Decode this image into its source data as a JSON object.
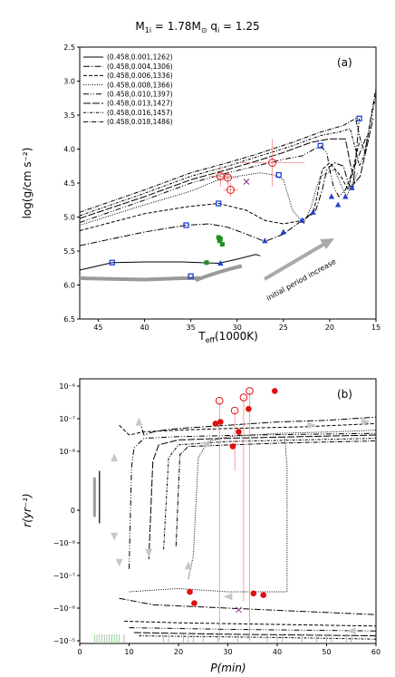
{
  "figure": {
    "title": "M_1i = 1.78M_⊙ q_i = 1.25",
    "title_main": "M",
    "title_sub": "1i",
    "title_rest": " = 1.78M",
    "title_sun": "⊙",
    "title_q": " q",
    "title_qsub": "i",
    "title_qval": " = 1.25"
  },
  "chart_data": [
    {
      "type": "line",
      "panel_label": "(a)",
      "xlabel": "T_eff(1000K)",
      "xlabel_main": "T",
      "xlabel_sub": "eff",
      "xlabel_rest": "(1000K)",
      "ylabel": "log(g/cm s⁻²)",
      "xlim": [
        47,
        15
      ],
      "ylim": [
        6.5,
        2.5
      ],
      "x_ticks": [
        "45",
        "40",
        "35",
        "30",
        "25",
        "20",
        "15"
      ],
      "x_tick_values": [
        45,
        40,
        35,
        30,
        25,
        20,
        15
      ],
      "y_ticks": [
        "2.5",
        "3.0",
        "3.5",
        "4.0",
        "4.5",
        "5.0",
        "5.5",
        "6.0",
        "6.5"
      ],
      "y_tick_values": [
        2.5,
        3.0,
        3.5,
        4.0,
        4.5,
        5.0,
        5.5,
        6.0,
        6.5
      ],
      "annotation": "initial period increase",
      "annotation_color": "#9a1d9a",
      "legend_position": "upper-left",
      "series": [
        {
          "name": "(0.458,0.001,1262)",
          "dash": "",
          "points": [
            [
              47,
              5.78
            ],
            [
              43.5,
              5.67
            ],
            [
              40,
              5.66
            ],
            [
              36,
              5.66
            ],
            [
              34,
              5.67
            ],
            [
              32,
              5.68
            ],
            [
              30,
              5.62
            ],
            [
              28,
              5.55
            ],
            [
              27.5,
              5.57
            ]
          ]
        },
        {
          "name": "(0.458,0.004,1306)",
          "dash": "7,2,1.5,2",
          "points": [
            [
              47,
              5.42
            ],
            [
              40,
              5.22
            ],
            [
              35.5,
              5.12
            ],
            [
              33,
              5.1
            ],
            [
              31,
              5.15
            ],
            [
              29,
              5.25
            ],
            [
              27,
              5.36
            ],
            [
              25,
              5.25
            ],
            [
              23,
              5.05
            ],
            [
              21.5,
              4.9
            ],
            [
              20.8,
              4.6
            ],
            [
              20.3,
              4.3
            ],
            [
              19.5,
              4.2
            ],
            [
              18.5,
              4.25
            ],
            [
              18,
              4.5
            ],
            [
              17.5,
              4.6
            ],
            [
              16.8,
              3.55
            ]
          ]
        },
        {
          "name": "(0.458,0.006,1336)",
          "dash": "4,2",
          "points": [
            [
              47,
              5.2
            ],
            [
              40,
              4.95
            ],
            [
              35.5,
              4.85
            ],
            [
              32,
              4.8
            ],
            [
              29,
              4.9
            ],
            [
              27,
              5.05
            ],
            [
              25,
              5.1
            ],
            [
              23,
              5.05
            ],
            [
              21.8,
              4.95
            ],
            [
              21.3,
              4.65
            ],
            [
              20.8,
              4.3
            ],
            [
              20,
              4.2
            ],
            [
              18.8,
              4.4
            ],
            [
              18,
              4.6
            ],
            [
              16.8,
              3.9
            ]
          ]
        },
        {
          "name": "(0.458,0.008,1366)",
          "dash": "1,1.5",
          "points": [
            [
              47,
              5.12
            ],
            [
              40,
              4.82
            ],
            [
              35,
              4.62
            ],
            [
              32,
              4.45
            ],
            [
              30,
              4.4
            ],
            [
              27.5,
              4.35
            ],
            [
              26,
              4.38
            ],
            [
              25,
              4.45
            ],
            [
              24,
              4.9
            ],
            [
              22.8,
              5.1
            ],
            [
              22,
              4.85
            ],
            [
              21.5,
              4.6
            ],
            [
              21,
              4.4
            ],
            [
              19.5,
              4.3
            ],
            [
              18.7,
              4.55
            ],
            [
              18.2,
              4.7
            ],
            [
              17,
              4.35
            ]
          ]
        },
        {
          "name": "(0.458,0.010,1397)",
          "dash": "6,2,1,2,1,2",
          "points": [
            [
              47,
              5.08
            ],
            [
              40,
              4.75
            ],
            [
              35,
              4.5
            ],
            [
              31,
              4.35
            ],
            [
              28,
              4.25
            ],
            [
              25,
              4.15
            ],
            [
              23,
              4.1
            ],
            [
              21,
              3.95
            ],
            [
              20.3,
              4.05
            ],
            [
              20,
              4.3
            ],
            [
              19.6,
              4.55
            ],
            [
              19,
              4.7
            ],
            [
              18.3,
              4.6
            ],
            [
              16,
              3.8
            ]
          ]
        },
        {
          "name": "(0.458,0.013,1427)",
          "dash": "8,2",
          "points": [
            [
              47,
              5.02
            ],
            [
              40,
              4.7
            ],
            [
              35,
              4.45
            ],
            [
              31,
              4.3
            ],
            [
              28,
              4.18
            ],
            [
              25,
              4.05
            ],
            [
              22,
              3.9
            ],
            [
              20,
              3.85
            ],
            [
              18.3,
              3.85
            ],
            [
              17.8,
              4.2
            ],
            [
              17.3,
              4.5
            ],
            [
              16.7,
              4.4
            ],
            [
              15.3,
              3.55
            ]
          ]
        },
        {
          "name": "(0.458,0.016,1457)",
          "dash": "3,1.5,1,1.5",
          "points": [
            [
              47,
              4.98
            ],
            [
              40,
              4.65
            ],
            [
              35,
              4.4
            ],
            [
              31,
              4.25
            ],
            [
              28,
              4.12
            ],
            [
              24,
              3.95
            ],
            [
              21,
              3.8
            ],
            [
              19,
              3.75
            ],
            [
              17.8,
              3.7
            ],
            [
              17.3,
              3.95
            ],
            [
              16.8,
              4.25
            ],
            [
              16.3,
              4.1
            ],
            [
              15,
              3.2
            ]
          ]
        },
        {
          "name": "(0.458,0.018,1486)",
          "dash": "5,1.5,1,1.5",
          "points": [
            [
              47,
              4.93
            ],
            [
              40,
              4.6
            ],
            [
              35,
              4.35
            ],
            [
              31,
              4.2
            ],
            [
              28,
              4.08
            ],
            [
              24,
              3.9
            ],
            [
              21,
              3.75
            ],
            [
              18.5,
              3.65
            ],
            [
              17.2,
              3.55
            ],
            [
              16.7,
              3.85
            ],
            [
              16.2,
              4.05
            ],
            [
              15,
              3.1
            ]
          ]
        }
      ],
      "observed_open_circles": [
        [
          31.8,
          4.4
        ],
        [
          31.0,
          4.42
        ],
        [
          30.7,
          4.6
        ],
        [
          26.2,
          4.2
        ]
      ],
      "observed_cross": [
        [
          29.0,
          4.48
        ]
      ],
      "green_squares": [
        [
          32,
          5.3
        ],
        [
          31.8,
          5.32
        ],
        [
          31.6,
          5.4
        ],
        [
          31.9,
          5.35
        ],
        [
          33.3,
          5.67
        ]
      ],
      "track_blue_squares": [
        [
          43.5,
          5.67
        ],
        [
          35.5,
          5.12
        ],
        [
          32,
          4.8
        ],
        [
          25.5,
          4.38
        ],
        [
          21,
          3.95
        ],
        [
          16.8,
          3.55
        ],
        [
          35,
          5.87
        ]
      ],
      "track_blue_triangles": [
        [
          31.8,
          5.68
        ],
        [
          27,
          5.35
        ],
        [
          25,
          5.22
        ],
        [
          23,
          5.05
        ],
        [
          21.8,
          4.93
        ],
        [
          19.8,
          4.7
        ],
        [
          19.1,
          4.82
        ],
        [
          18.3,
          4.7
        ],
        [
          17.6,
          4.57
        ]
      ]
    },
    {
      "type": "line",
      "panel_label": "(b)",
      "xlabel": "P(min)",
      "ylabel": "r(yr⁻¹)",
      "xlim": [
        0,
        60
      ],
      "x_ticks": [
        "0",
        "10",
        "20",
        "30",
        "40",
        "50",
        "60"
      ],
      "x_tick_values": [
        0,
        10,
        20,
        30,
        40,
        50,
        60
      ],
      "y_ticks": [
        "−10⁻⁵",
        "−10⁻⁶",
        "−10⁻⁷",
        "−10⁻⁸",
        "0",
        "10⁻⁸",
        "10⁻⁷",
        "10⁻⁶"
      ],
      "y_tick_values": [
        -5,
        -6,
        -7,
        -8,
        0,
        8,
        7,
        6
      ],
      "y_scale": "symlog",
      "observed_filled_circles": [
        [
          39.5,
          6.15
        ],
        [
          27.5,
          7.15
        ],
        [
          28.5,
          7.1
        ],
        [
          32.2,
          7.4
        ],
        [
          34.2,
          6.7
        ],
        [
          31,
          7.85
        ],
        [
          22.3,
          -6.5
        ],
        [
          23.2,
          -6.15
        ],
        [
          35.2,
          -6.45
        ],
        [
          37.2,
          -6.4
        ]
      ],
      "observed_open_circles": [
        [
          28.3,
          6.45
        ],
        [
          31.4,
          6.75
        ],
        [
          33.2,
          6.35
        ],
        [
          34.4,
          6.15
        ]
      ],
      "observed_cross": [
        [
          32.2,
          -5.95
        ]
      ],
      "rug_gray": [
        5,
        6,
        9,
        17,
        18,
        21,
        22,
        23,
        25,
        28,
        32,
        38,
        40,
        41,
        45,
        48,
        50,
        51,
        54,
        55
      ],
      "rug_green": [
        3,
        3.5,
        4,
        4.5,
        5.5,
        6.5,
        7,
        7.5,
        8
      ]
    }
  ],
  "colors": {
    "track_blue": "#1f3fcf",
    "observed_red": "#e01010",
    "green_marker": "#1f8f1f",
    "gray_track": "#9a9a9a",
    "cross_purple": "#8a2a8a"
  }
}
